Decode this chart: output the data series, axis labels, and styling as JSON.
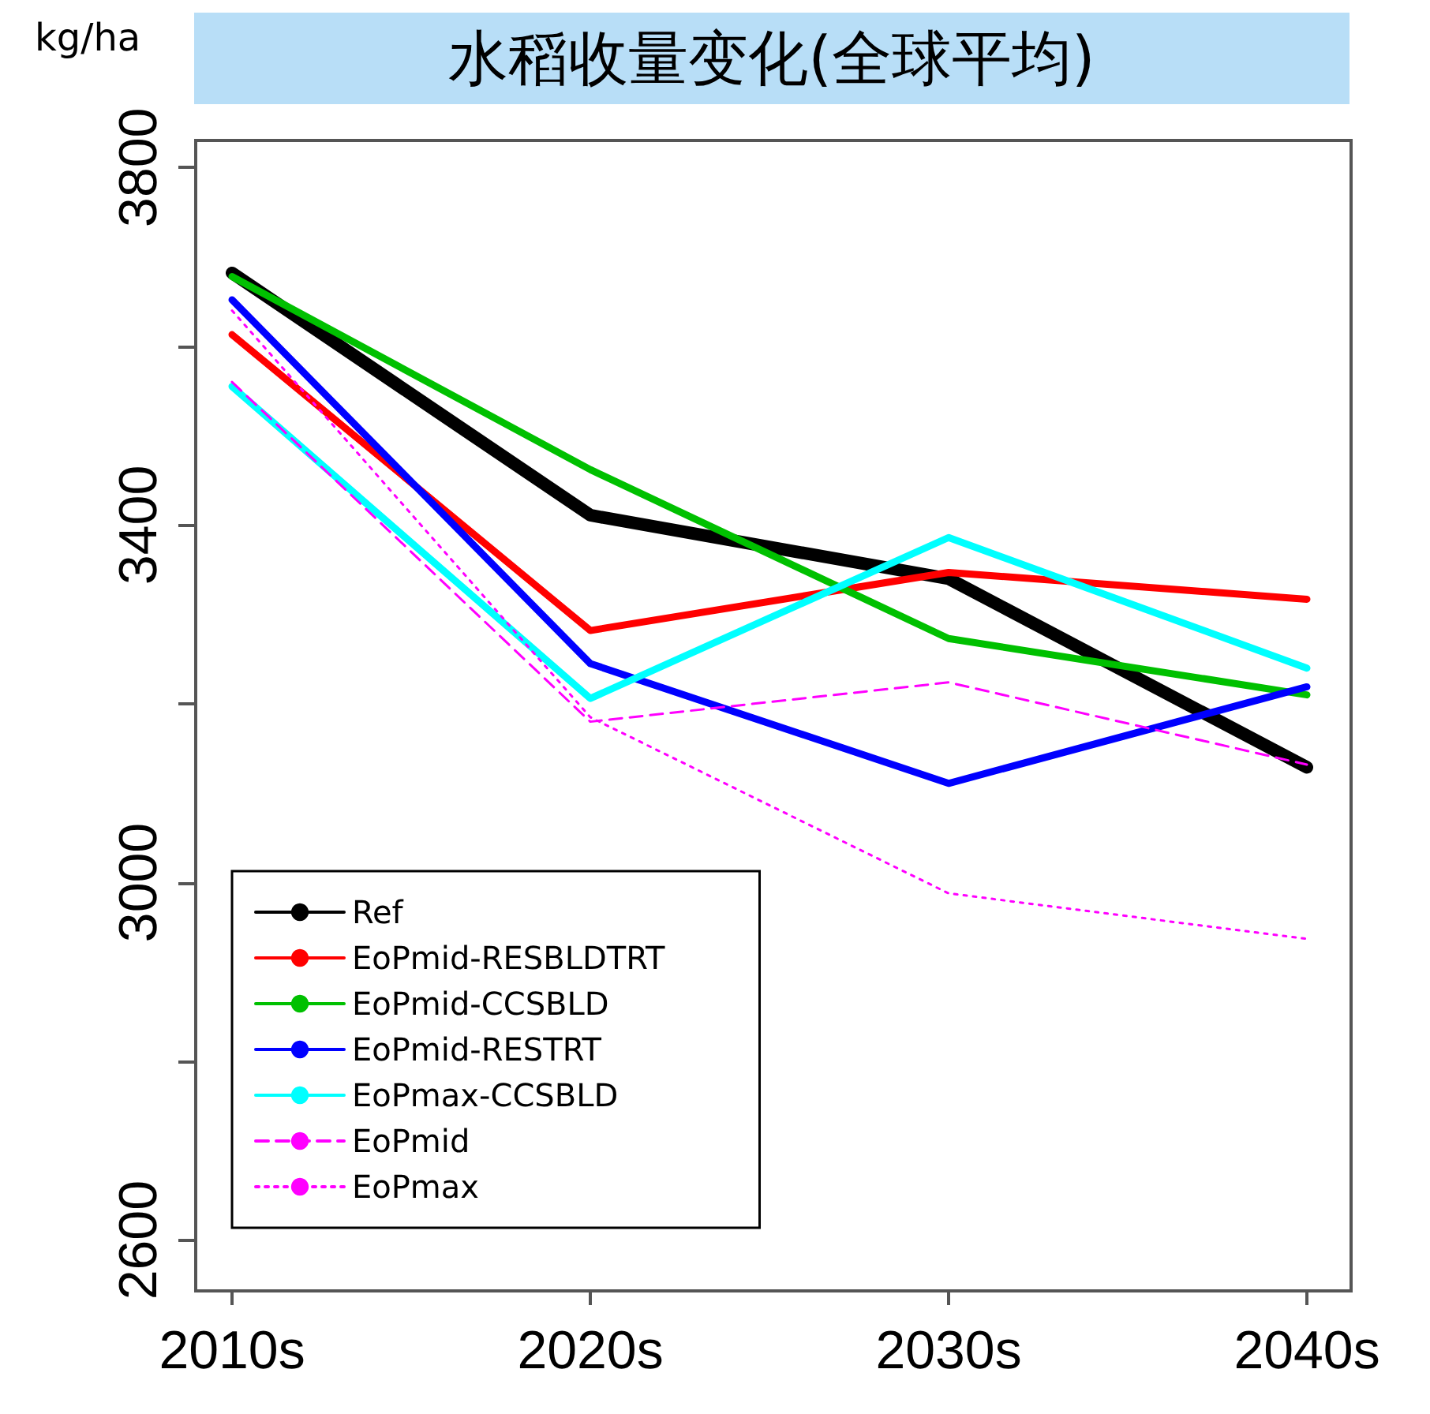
{
  "chart_data": {
    "type": "line",
    "title": "水稻收量变化(全球平均)",
    "ylabel": "kg/ha",
    "categories": [
      "2010s",
      "2020s",
      "2030s",
      "2040s"
    ],
    "series": [
      {
        "name": "Ref",
        "color": "#000000",
        "line_style": "solid",
        "values": [
          3682,
          3411,
          3340,
          3129
        ]
      },
      {
        "name": "EoPmid-RESBLDTRT",
        "color": "#ff0000",
        "line_style": "solid",
        "values": [
          3613,
          3282,
          3347,
          3317
        ]
      },
      {
        "name": "EoPmid-CCSBLD",
        "color": "#00c000",
        "line_style": "solid",
        "values": [
          3678,
          3462,
          3273,
          3210
        ]
      },
      {
        "name": "EoPmid-RESTRT",
        "color": "#0000ff",
        "line_style": "solid",
        "values": [
          3652,
          3245,
          3111,
          3219
        ]
      },
      {
        "name": "EoPmax-CCSBLD",
        "color": "#00ffff",
        "line_style": "solid",
        "values": [
          3555,
          3206,
          3386,
          3240
        ]
      },
      {
        "name": "EoPmid",
        "color": "#ff00ff",
        "line_style": "dashed",
        "values": [
          3560,
          3180,
          3224,
          3132
        ]
      },
      {
        "name": "EoPmax",
        "color": "#ff00ff",
        "line_style": "dotted",
        "values": [
          3640,
          3185,
          2988,
          2937
        ]
      }
    ],
    "ylim": [
      2545,
      3832
    ],
    "yticks": [
      2600,
      {
        "value": 2800,
        "label": null
      },
      3000,
      {
        "value": 3200,
        "label": null
      },
      3400,
      {
        "value": 3600,
        "label": null
      },
      3800
    ],
    "grid": false,
    "legend": "bottom left",
    "marker": "none"
  }
}
